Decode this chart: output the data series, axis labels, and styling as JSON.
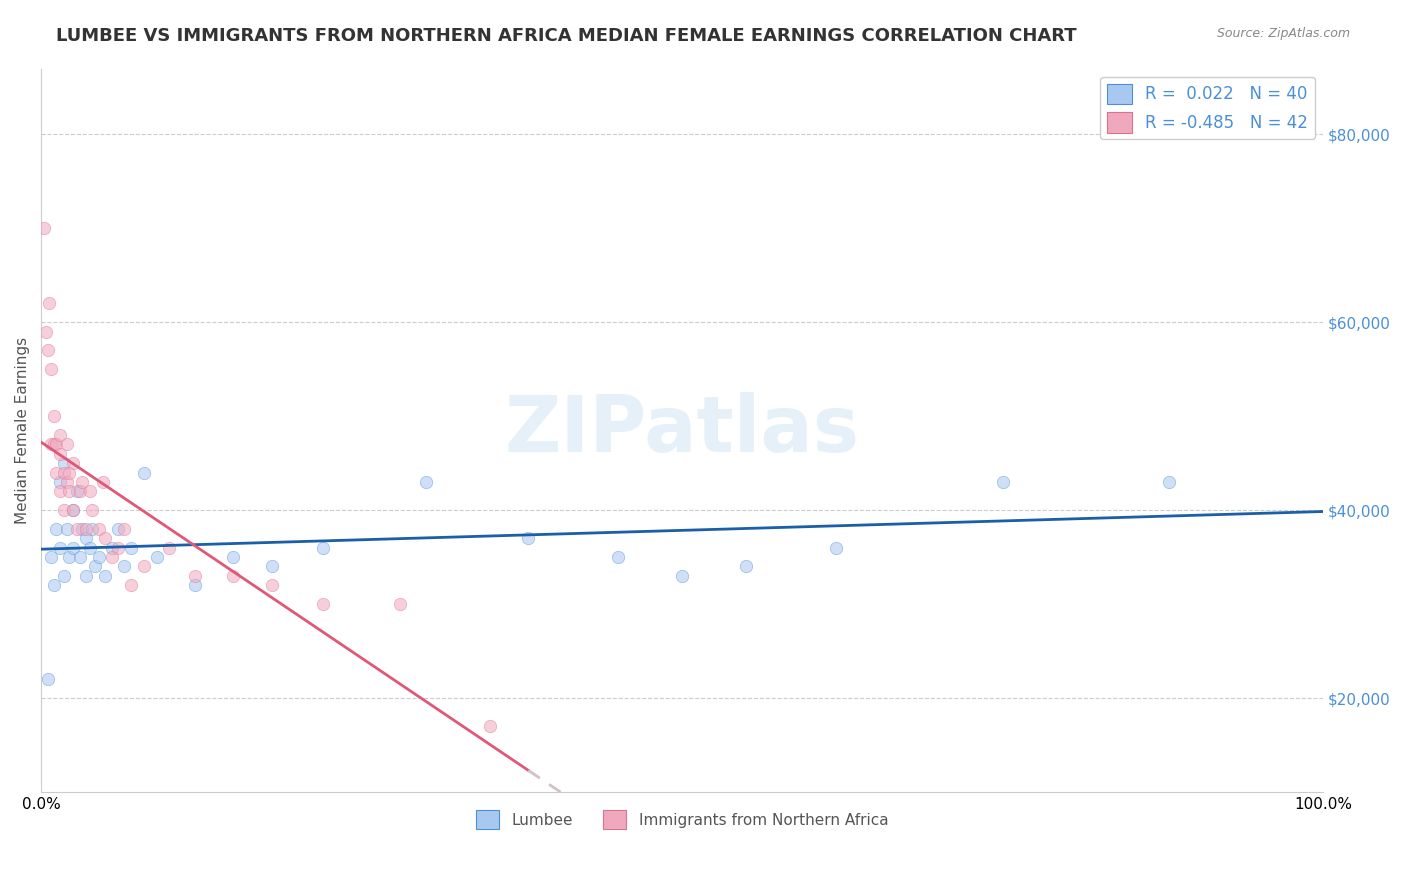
{
  "title": "LUMBEE VS IMMIGRANTS FROM NORTHERN AFRICA MEDIAN FEMALE EARNINGS CORRELATION CHART",
  "source": "Source: ZipAtlas.com",
  "ylabel": "Median Female Earnings",
  "ytick_labels": [
    "$20,000",
    "$40,000",
    "$60,000",
    "$80,000"
  ],
  "ytick_values": [
    20000,
    40000,
    60000,
    80000
  ],
  "ylim": [
    10000,
    87000
  ],
  "xlim": [
    0.0,
    1.0
  ],
  "watermark": "ZIPatlas",
  "legend_r_labels": [
    "R =  0.022   N = 40",
    "R = -0.485   N = 42"
  ],
  "legend_bottom": [
    "Lumbee",
    "Immigrants from Northern Africa"
  ],
  "blue_color": "#4a90d9",
  "pink_color": "#e07090",
  "blue_dot_color": "#a8c8f0",
  "pink_dot_color": "#f0a8be",
  "blue_trend_color": "#1a5fa8",
  "pink_trend_color": "#e05878",
  "pink_dashed_color": "#d0c0c8",
  "lumbee_x": [
    0.005,
    0.008,
    0.01,
    0.012,
    0.015,
    0.015,
    0.018,
    0.018,
    0.02,
    0.022,
    0.025,
    0.025,
    0.028,
    0.03,
    0.032,
    0.035,
    0.035,
    0.038,
    0.04,
    0.042,
    0.045,
    0.05,
    0.055,
    0.06,
    0.065,
    0.07,
    0.08,
    0.09,
    0.12,
    0.15,
    0.18,
    0.22,
    0.3,
    0.38,
    0.45,
    0.5,
    0.55,
    0.62,
    0.75,
    0.88
  ],
  "lumbee_y": [
    22000,
    35000,
    32000,
    38000,
    36000,
    43000,
    45000,
    33000,
    38000,
    35000,
    36000,
    40000,
    42000,
    35000,
    38000,
    33000,
    37000,
    36000,
    38000,
    34000,
    35000,
    33000,
    36000,
    38000,
    34000,
    36000,
    44000,
    35000,
    32000,
    35000,
    34000,
    36000,
    43000,
    37000,
    35000,
    33000,
    34000,
    36000,
    43000,
    43000
  ],
  "northern_africa_x": [
    0.002,
    0.004,
    0.005,
    0.006,
    0.008,
    0.008,
    0.01,
    0.01,
    0.012,
    0.012,
    0.015,
    0.015,
    0.015,
    0.018,
    0.018,
    0.02,
    0.02,
    0.022,
    0.022,
    0.025,
    0.025,
    0.028,
    0.03,
    0.032,
    0.035,
    0.038,
    0.04,
    0.045,
    0.048,
    0.05,
    0.055,
    0.06,
    0.065,
    0.07,
    0.08,
    0.1,
    0.12,
    0.15,
    0.18,
    0.22,
    0.28,
    0.35
  ],
  "northern_africa_y": [
    70000,
    59000,
    57000,
    62000,
    47000,
    55000,
    47000,
    50000,
    47000,
    44000,
    46000,
    42000,
    48000,
    44000,
    40000,
    47000,
    43000,
    44000,
    42000,
    40000,
    45000,
    38000,
    42000,
    43000,
    38000,
    42000,
    40000,
    38000,
    43000,
    37000,
    35000,
    36000,
    38000,
    32000,
    34000,
    36000,
    33000,
    33000,
    32000,
    30000,
    30000,
    17000
  ],
  "grid_color": "#cccccc",
  "background_color": "#ffffff",
  "title_fontsize": 13,
  "axis_label_fontsize": 11,
  "tick_fontsize": 11,
  "dot_size": 80,
  "dot_alpha": 0.55,
  "line_width": 2.0
}
